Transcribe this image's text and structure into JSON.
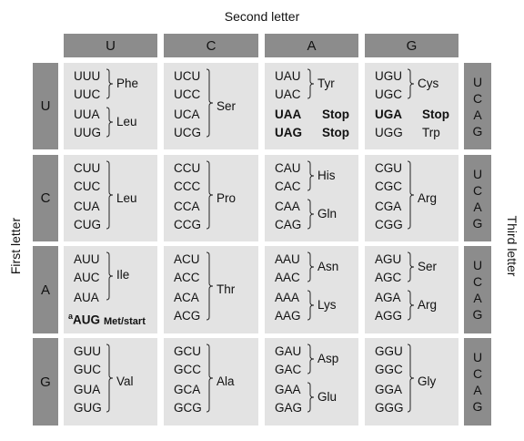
{
  "title_second": "Second letter",
  "title_first": "First letter",
  "title_third": "Third letter",
  "second_letters": [
    "U",
    "C",
    "A",
    "G"
  ],
  "first_letters": [
    "U",
    "C",
    "A",
    "G"
  ],
  "third_letters": [
    "U",
    "C",
    "A",
    "G"
  ],
  "cells": {
    "UU": {
      "codons": [
        "UUU",
        "UUC",
        "UUA",
        "UUG"
      ],
      "aa1": "Phe",
      "aa2": "Leu"
    },
    "UC": {
      "codons": [
        "UCU",
        "UCC",
        "UCA",
        "UCG"
      ],
      "aa": "Ser"
    },
    "UA": {
      "codons": [
        "UAU",
        "UAC",
        "UAA",
        "UAG"
      ],
      "aa1": "Tyr",
      "stop1": "Stop",
      "stop2": "Stop"
    },
    "UG": {
      "codons": [
        "UGU",
        "UGC",
        "UGA",
        "UGG"
      ],
      "aa1": "Cys",
      "stop": "Stop",
      "trp": "Trp"
    },
    "CU": {
      "codons": [
        "CUU",
        "CUC",
        "CUA",
        "CUG"
      ],
      "aa": "Leu"
    },
    "CC": {
      "codons": [
        "CCU",
        "CCC",
        "CCA",
        "CCG"
      ],
      "aa": "Pro"
    },
    "CA": {
      "codons": [
        "CAU",
        "CAC",
        "CAA",
        "CAG"
      ],
      "aa1": "His",
      "aa2": "Gln"
    },
    "CG": {
      "codons": [
        "CGU",
        "CGC",
        "CGA",
        "CGG"
      ],
      "aa": "Arg"
    },
    "AU": {
      "codons": [
        "AUU",
        "AUC",
        "AUA",
        "AUG"
      ],
      "aa": "Ile",
      "sup": "a",
      "met": "Met/start"
    },
    "AC": {
      "codons": [
        "ACU",
        "ACC",
        "ACA",
        "ACG"
      ],
      "aa": "Thr"
    },
    "AA": {
      "codons": [
        "AAU",
        "AAC",
        "AAA",
        "AAG"
      ],
      "aa1": "Asn",
      "aa2": "Lys"
    },
    "AG": {
      "codons": [
        "AGU",
        "AGC",
        "AGA",
        "AGG"
      ],
      "aa1": "Ser",
      "aa2": "Arg"
    },
    "GU": {
      "codons": [
        "GUU",
        "GUC",
        "GUA",
        "GUG"
      ],
      "aa": "Val"
    },
    "GC": {
      "codons": [
        "GCU",
        "GCC",
        "GCA",
        "GCG"
      ],
      "aa": "Ala"
    },
    "GA": {
      "codons": [
        "GAU",
        "GAC",
        "GAA",
        "GAG"
      ],
      "aa1": "Asp",
      "aa2": "Glu"
    },
    "GG": {
      "codons": [
        "GGU",
        "GGC",
        "GGA",
        "GGG"
      ],
      "aa": "Gly"
    }
  }
}
